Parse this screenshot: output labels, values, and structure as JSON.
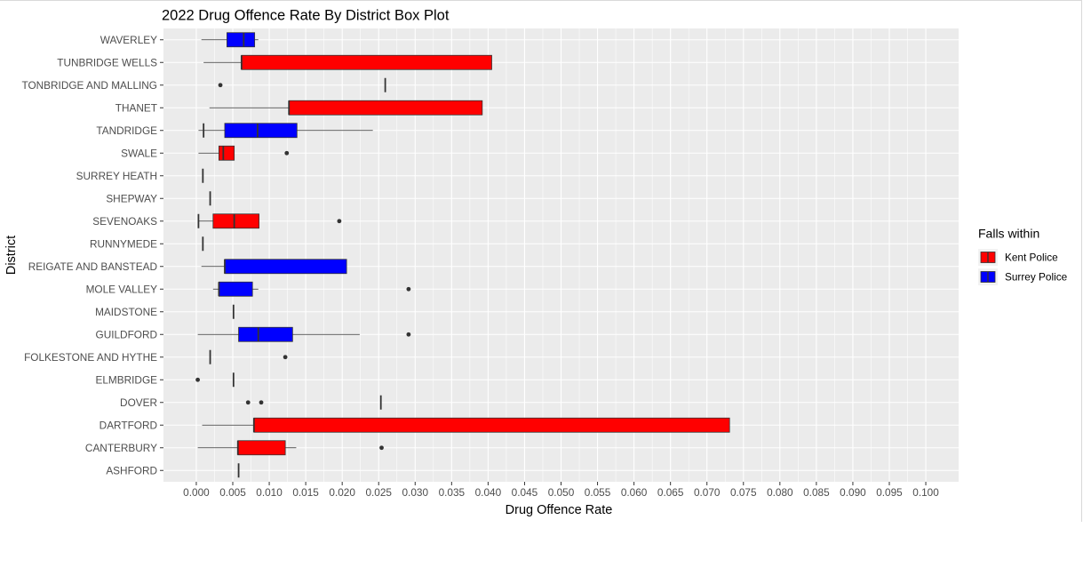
{
  "chart_data": {
    "type": "boxplot",
    "orientation": "horizontal",
    "title": "2022 Drug Offence Rate By District Box Plot",
    "xlabel": "Drug Offence Rate",
    "ylabel": "District",
    "xlim": [
      -0.0045,
      0.1045
    ],
    "x_ticks": [
      "0.000",
      "0.005",
      "0.010",
      "0.015",
      "0.020",
      "0.025",
      "0.030",
      "0.035",
      "0.040",
      "0.045",
      "0.050",
      "0.055",
      "0.060",
      "0.065",
      "0.070",
      "0.075",
      "0.080",
      "0.085",
      "0.090",
      "0.095",
      "0.100"
    ],
    "grid": true,
    "legend": {
      "title": "Falls within",
      "placement": "right",
      "entries": [
        {
          "name": "Kent Police",
          "color": "#ff0000"
        },
        {
          "name": "Surrey Police",
          "color": "#0000ff"
        }
      ]
    },
    "colors": {
      "Kent Police": "#ff0000",
      "Surrey Police": "#0000ff",
      "panel": "#ebebeb",
      "grid": "#ffffff"
    },
    "categories": [
      "WAVERLEY",
      "TUNBRIDGE WELLS",
      "TONBRIDGE AND MALLING",
      "THANET",
      "TANDRIDGE",
      "SWALE",
      "SURREY HEATH",
      "SHEPWAY",
      "SEVENOAKS",
      "RUNNYMEDE",
      "REIGATE AND BANSTEAD",
      "MOLE VALLEY",
      "MAIDSTONE",
      "GUILDFORD",
      "FOLKESTONE AND HYTHE",
      "ELMBRIDGE",
      "DOVER",
      "DARTFORD",
      "CANTERBURY",
      "ASHFORD"
    ],
    "boxes": [
      {
        "district": "WAVERLEY",
        "group": "Surrey Police",
        "min": 0.0007,
        "q1": 0.0042,
        "median": 0.0065,
        "q3": 0.008,
        "max": 0.0085,
        "outliers": []
      },
      {
        "district": "TUNBRIDGE WELLS",
        "group": "Kent Police",
        "min": 0.001,
        "q1": 0.0062,
        "median": 0.0062,
        "q3": 0.0405,
        "max": 0.0405,
        "outliers": []
      },
      {
        "district": "TONBRIDGE AND MALLING",
        "group": "Kent Police",
        "min": 0.0259,
        "q1": 0.0259,
        "median": 0.0259,
        "q3": 0.0259,
        "max": 0.0259,
        "outliers": [
          0.0033
        ]
      },
      {
        "district": "THANET",
        "group": "Kent Police",
        "min": 0.0018,
        "q1": 0.0127,
        "median": 0.0127,
        "q3": 0.0392,
        "max": 0.0392,
        "outliers": []
      },
      {
        "district": "TANDRIDGE",
        "group": "Surrey Police",
        "min": 0.0003,
        "q1": 0.0039,
        "median": 0.0084,
        "q3": 0.0138,
        "max": 0.0242,
        "outliers": []
      },
      {
        "district": "TANDRIDGE",
        "group": "Kent Police",
        "min": 0.001,
        "q1": 0.001,
        "median": 0.001,
        "q3": 0.001,
        "max": 0.001,
        "outliers": []
      },
      {
        "district": "SWALE",
        "group": "Kent Police",
        "min": 0.0003,
        "q1": 0.0031,
        "median": 0.0037,
        "q3": 0.0052,
        "max": 0.0052,
        "outliers": [
          0.0124
        ]
      },
      {
        "district": "SURREY HEATH",
        "group": "Surrey Police",
        "min": 0.0009,
        "q1": 0.0009,
        "median": 0.0009,
        "q3": 0.0009,
        "max": 0.0009,
        "outliers": []
      },
      {
        "district": "SHEPWAY",
        "group": "Kent Police",
        "min": 0.0019,
        "q1": 0.0019,
        "median": 0.0019,
        "q3": 0.0019,
        "max": 0.0019,
        "outliers": []
      },
      {
        "district": "SEVENOAKS",
        "group": "Surrey Police",
        "min": 0.0003,
        "q1": 0.0003,
        "median": 0.0003,
        "q3": 0.0003,
        "max": 0.0003,
        "outliers": []
      },
      {
        "district": "SEVENOAKS",
        "group": "Kent Police",
        "min": 0.0002,
        "q1": 0.0023,
        "median": 0.0052,
        "q3": 0.0086,
        "max": 0.0086,
        "outliers": [
          0.0196
        ]
      },
      {
        "district": "RUNNYMEDE",
        "group": "Surrey Police",
        "min": 0.0009,
        "q1": 0.0009,
        "median": 0.0009,
        "q3": 0.0009,
        "max": 0.0009,
        "outliers": []
      },
      {
        "district": "REIGATE AND BANSTEAD",
        "group": "Surrey Police",
        "min": 0.0007,
        "q1": 0.0039,
        "median": 0.0039,
        "q3": 0.0206,
        "max": 0.0206,
        "outliers": []
      },
      {
        "district": "MOLE VALLEY",
        "group": "Surrey Police",
        "min": 0.0023,
        "q1": 0.0031,
        "median": 0.0031,
        "q3": 0.0077,
        "max": 0.0085,
        "outliers": [
          0.0291
        ]
      },
      {
        "district": "MAIDSTONE",
        "group": "Kent Police",
        "min": 0.0051,
        "q1": 0.0051,
        "median": 0.0051,
        "q3": 0.0051,
        "max": 0.0051,
        "outliers": []
      },
      {
        "district": "GUILDFORD",
        "group": "Surrey Police",
        "min": 0.0002,
        "q1": 0.0058,
        "median": 0.0085,
        "q3": 0.0132,
        "max": 0.0224,
        "outliers": [
          0.0291
        ]
      },
      {
        "district": "FOLKESTONE AND HYTHE",
        "group": "Kent Police",
        "min": 0.0019,
        "q1": 0.0019,
        "median": 0.0019,
        "q3": 0.0019,
        "max": 0.0019,
        "outliers": [
          0.0122
        ]
      },
      {
        "district": "ELMBRIDGE",
        "group": "Surrey Police",
        "min": 0.0051,
        "q1": 0.0051,
        "median": 0.0051,
        "q3": 0.0051,
        "max": 0.0051,
        "outliers": [
          0.0002
        ]
      },
      {
        "district": "DOVER",
        "group": "Kent Police",
        "min": 0.0253,
        "q1": 0.0253,
        "median": 0.0253,
        "q3": 0.0253,
        "max": 0.0253,
        "outliers": [
          0.0071,
          0.0089
        ]
      },
      {
        "district": "DARTFORD",
        "group": "Kent Police",
        "min": 0.0008,
        "q1": 0.0079,
        "median": 0.0079,
        "q3": 0.0731,
        "max": 0.0731,
        "outliers": []
      },
      {
        "district": "CANTERBURY",
        "group": "Kent Police",
        "min": 0.0002,
        "q1": 0.0057,
        "median": 0.0057,
        "q3": 0.0122,
        "max": 0.0137,
        "outliers": [
          0.0254
        ]
      },
      {
        "district": "ASHFORD",
        "group": "Kent Police",
        "min": 0.0058,
        "q1": 0.0058,
        "median": 0.0058,
        "q3": 0.0058,
        "max": 0.0058,
        "outliers": []
      }
    ]
  }
}
